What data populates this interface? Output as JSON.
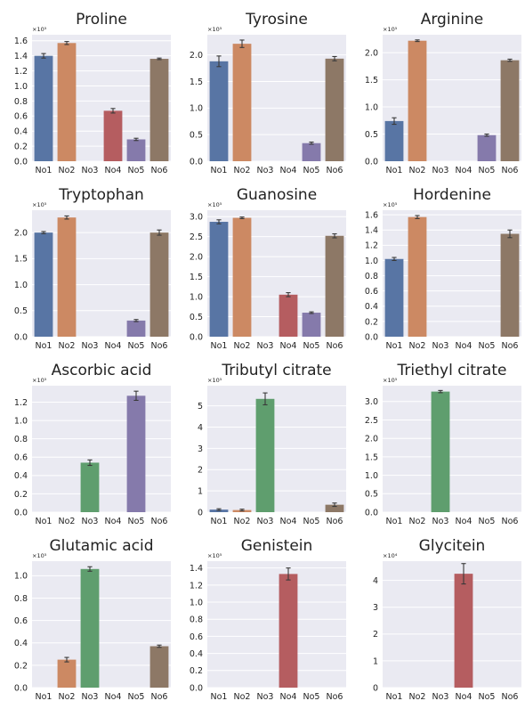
{
  "colors": {
    "background": "#eaeaf2",
    "No1": "#5875a4",
    "No2": "#cc8963",
    "No3": "#5f9e6e",
    "No4": "#b55d60",
    "No5": "#857aab",
    "No6": "#8d7866"
  },
  "chart_data": [
    {
      "type": "bar",
      "title": "Proline",
      "categories": [
        "No1",
        "No2",
        "No3",
        "No4",
        "No5",
        "No6"
      ],
      "multiplier_label": "×10⁵",
      "yticks": [
        0.0,
        0.2,
        0.4,
        0.6,
        0.8,
        1.0,
        1.2,
        1.4,
        1.6
      ],
      "ytick_labels": [
        "0.0",
        "0.2",
        "0.4",
        "0.6",
        "0.8",
        "1.0",
        "1.2",
        "1.4",
        "1.6"
      ],
      "ylim": [
        0,
        1.68
      ],
      "values": [
        1.4,
        1.57,
        0,
        0.67,
        0.29,
        1.36
      ],
      "errors": [
        0.03,
        0.02,
        0,
        0.03,
        0.015,
        0.01
      ]
    },
    {
      "type": "bar",
      "title": "Tyrosine",
      "categories": [
        "No1",
        "No2",
        "No3",
        "No4",
        "No5",
        "No6"
      ],
      "multiplier_label": "×10⁵",
      "yticks": [
        0.0,
        0.5,
        1.0,
        1.5,
        2.0
      ],
      "ytick_labels": [
        "0.0",
        "0.5",
        "1.0",
        "1.5",
        "2.0"
      ],
      "ylim": [
        0,
        2.38
      ],
      "values": [
        1.88,
        2.21,
        0,
        0,
        0.34,
        1.93
      ],
      "errors": [
        0.1,
        0.07,
        0,
        0,
        0.02,
        0.04
      ]
    },
    {
      "type": "bar",
      "title": "Arginine",
      "categories": [
        "No1",
        "No2",
        "No3",
        "No4",
        "No5",
        "No6"
      ],
      "multiplier_label": "×10⁵",
      "yticks": [
        0.0,
        0.5,
        1.0,
        1.5,
        2.0
      ],
      "ytick_labels": [
        "0.0",
        "0.5",
        "1.0",
        "1.5",
        "2.0"
      ],
      "ylim": [
        0,
        2.33
      ],
      "values": [
        0.74,
        2.22,
        0,
        0,
        0.48,
        1.86
      ],
      "errors": [
        0.06,
        0.015,
        0,
        0,
        0.02,
        0.02
      ]
    },
    {
      "type": "bar",
      "title": "Tryptophan",
      "categories": [
        "No1",
        "No2",
        "No3",
        "No4",
        "No5",
        "No6"
      ],
      "multiplier_label": "×10⁵",
      "yticks": [
        0.0,
        0.5,
        1.0,
        1.5,
        2.0
      ],
      "ytick_labels": [
        "0.0",
        "0.5",
        "1.0",
        "1.5",
        "2.0"
      ],
      "ylim": [
        0,
        2.43
      ],
      "values": [
        2.0,
        2.29,
        0,
        0,
        0.31,
        2.0
      ],
      "errors": [
        0.02,
        0.03,
        0,
        0,
        0.02,
        0.05
      ]
    },
    {
      "type": "bar",
      "title": "Guanosine",
      "categories": [
        "No1",
        "No2",
        "No3",
        "No4",
        "No5",
        "No6"
      ],
      "multiplier_label": "×10⁵",
      "yticks": [
        0.0,
        0.5,
        1.0,
        1.5,
        2.0,
        2.5,
        3.0
      ],
      "ytick_labels": [
        "0.0",
        "0.5",
        "1.0",
        "1.5",
        "2.0",
        "2.5",
        "3.0"
      ],
      "ylim": [
        0,
        3.16
      ],
      "values": [
        2.87,
        2.97,
        0,
        1.05,
        0.6,
        2.52
      ],
      "errors": [
        0.05,
        0.02,
        0,
        0.05,
        0.02,
        0.05
      ]
    },
    {
      "type": "bar",
      "title": "Hordenine",
      "categories": [
        "No1",
        "No2",
        "No3",
        "No4",
        "No5",
        "No6"
      ],
      "multiplier_label": "×10⁵",
      "yticks": [
        0.0,
        0.2,
        0.4,
        0.6,
        0.8,
        1.0,
        1.2,
        1.4,
        1.6
      ],
      "ytick_labels": [
        "0.0",
        "0.2",
        "0.4",
        "0.6",
        "0.8",
        "1.0",
        "1.2",
        "1.4",
        "1.6"
      ],
      "ylim": [
        0,
        1.66
      ],
      "values": [
        1.02,
        1.57,
        0,
        0,
        0,
        1.35
      ],
      "errors": [
        0.02,
        0.02,
        0,
        0,
        0,
        0.05
      ]
    },
    {
      "type": "bar",
      "title": "Ascorbic acid",
      "categories": [
        "No1",
        "No2",
        "No3",
        "No4",
        "No5",
        "No6"
      ],
      "multiplier_label": "×10⁵",
      "yticks": [
        0.0,
        0.2,
        0.4,
        0.6,
        0.8,
        1.0,
        1.2
      ],
      "ytick_labels": [
        "0.0",
        "0.2",
        "0.4",
        "0.6",
        "0.8",
        "1.0",
        "1.2"
      ],
      "ylim": [
        0,
        1.38
      ],
      "values": [
        0,
        0,
        0.54,
        0,
        1.27,
        0
      ],
      "errors": [
        0,
        0,
        0.03,
        0,
        0.05,
        0
      ]
    },
    {
      "type": "bar",
      "title": "Tributyl citrate",
      "categories": [
        "No1",
        "No2",
        "No3",
        "No4",
        "No5",
        "No6"
      ],
      "multiplier_label": "×10⁵",
      "yticks": [
        0,
        1,
        2,
        3,
        4,
        5
      ],
      "ytick_labels": [
        "0",
        "1",
        "2",
        "3",
        "4",
        "5"
      ],
      "ylim": [
        0,
        5.95
      ],
      "values": [
        0.12,
        0.1,
        5.33,
        0,
        0,
        0.35
      ],
      "errors": [
        0.04,
        0.04,
        0.28,
        0,
        0,
        0.08
      ]
    },
    {
      "type": "bar",
      "title": "Triethyl citrate",
      "categories": [
        "No1",
        "No2",
        "No3",
        "No4",
        "No5",
        "No6"
      ],
      "multiplier_label": "×10⁵",
      "yticks": [
        0.0,
        0.5,
        1.0,
        1.5,
        2.0,
        2.5,
        3.0
      ],
      "ytick_labels": [
        "0.0",
        "0.5",
        "1.0",
        "1.5",
        "2.0",
        "2.5",
        "3.0"
      ],
      "ylim": [
        0,
        3.43
      ],
      "values": [
        0,
        0,
        3.27,
        0,
        0,
        0
      ],
      "errors": [
        0,
        0,
        0.03,
        0,
        0,
        0
      ]
    },
    {
      "type": "bar",
      "title": "Glutamic acid",
      "categories": [
        "No1",
        "No2",
        "No3",
        "No4",
        "No5",
        "No6"
      ],
      "multiplier_label": "×10⁵",
      "yticks": [
        0.0,
        0.2,
        0.4,
        0.6,
        0.8,
        1.0
      ],
      "ytick_labels": [
        "0.0",
        "0.2",
        "0.4",
        "0.6",
        "0.8",
        "1.0"
      ],
      "ylim": [
        0,
        1.13
      ],
      "values": [
        0,
        0.25,
        1.06,
        0,
        0,
        0.37
      ],
      "errors": [
        0,
        0.02,
        0.02,
        0,
        0,
        0.01
      ]
    },
    {
      "type": "bar",
      "title": "Genistein",
      "categories": [
        "No1",
        "No2",
        "No3",
        "No4",
        "No5",
        "No6"
      ],
      "multiplier_label": "×10⁵",
      "yticks": [
        0.0,
        0.2,
        0.4,
        0.6,
        0.8,
        1.0,
        1.2,
        1.4
      ],
      "ytick_labels": [
        "0.0",
        "0.2",
        "0.4",
        "0.6",
        "0.8",
        "1.0",
        "1.2",
        "1.4"
      ],
      "ylim": [
        0,
        1.48
      ],
      "values": [
        0,
        0,
        0,
        1.33,
        0,
        0
      ],
      "errors": [
        0,
        0,
        0,
        0.07,
        0,
        0
      ]
    },
    {
      "type": "bar",
      "title": "Glycitein",
      "categories": [
        "No1",
        "No2",
        "No3",
        "No4",
        "No5",
        "No6"
      ],
      "multiplier_label": "×10⁴",
      "yticks": [
        0,
        1,
        2,
        3,
        4
      ],
      "ytick_labels": [
        "0",
        "1",
        "2",
        "3",
        "4"
      ],
      "ylim": [
        0,
        4.72
      ],
      "values": [
        0,
        0,
        0,
        4.25,
        0,
        0
      ],
      "errors": [
        0,
        0,
        0,
        0.38,
        0,
        0
      ]
    }
  ]
}
